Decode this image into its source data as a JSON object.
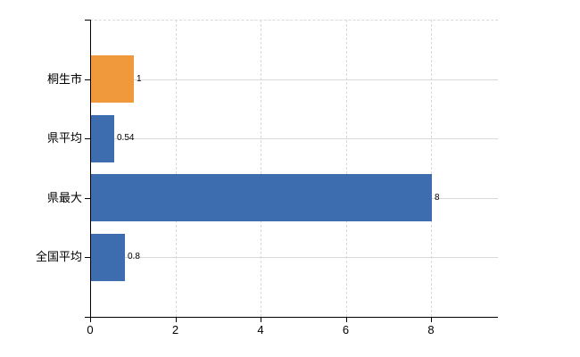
{
  "chart_data": {
    "type": "bar",
    "orientation": "horizontal",
    "title": "",
    "xlabel": "",
    "ylabel": "",
    "categories": [
      "桐生市",
      "県平均",
      "県最大",
      "全国平均"
    ],
    "values": [
      1,
      0.54,
      8,
      0.8
    ],
    "value_labels": [
      "1",
      "0.54",
      "8",
      "0.8"
    ],
    "bar_colors": [
      "#f0993c",
      "#3d6daf",
      "#3d6daf",
      "#3d6daf"
    ],
    "x_tick_labels": [
      "0",
      "2",
      "4",
      "6",
      "8"
    ],
    "x_tick_values": [
      0,
      2,
      4,
      6,
      8
    ],
    "xlim": [
      0,
      9.57
    ],
    "grid": {
      "vertical_style": "dashed",
      "horizontal_style": "solid",
      "color": "#d9d9d9",
      "top_border_style": "dashed"
    },
    "legend": "none"
  },
  "colors": {
    "background": "#ffffff",
    "axis": "#000000",
    "text": "#000000",
    "gridline": "#d9d9d9",
    "highlight_bar": "#f0993c",
    "default_bar": "#3d6daf"
  }
}
